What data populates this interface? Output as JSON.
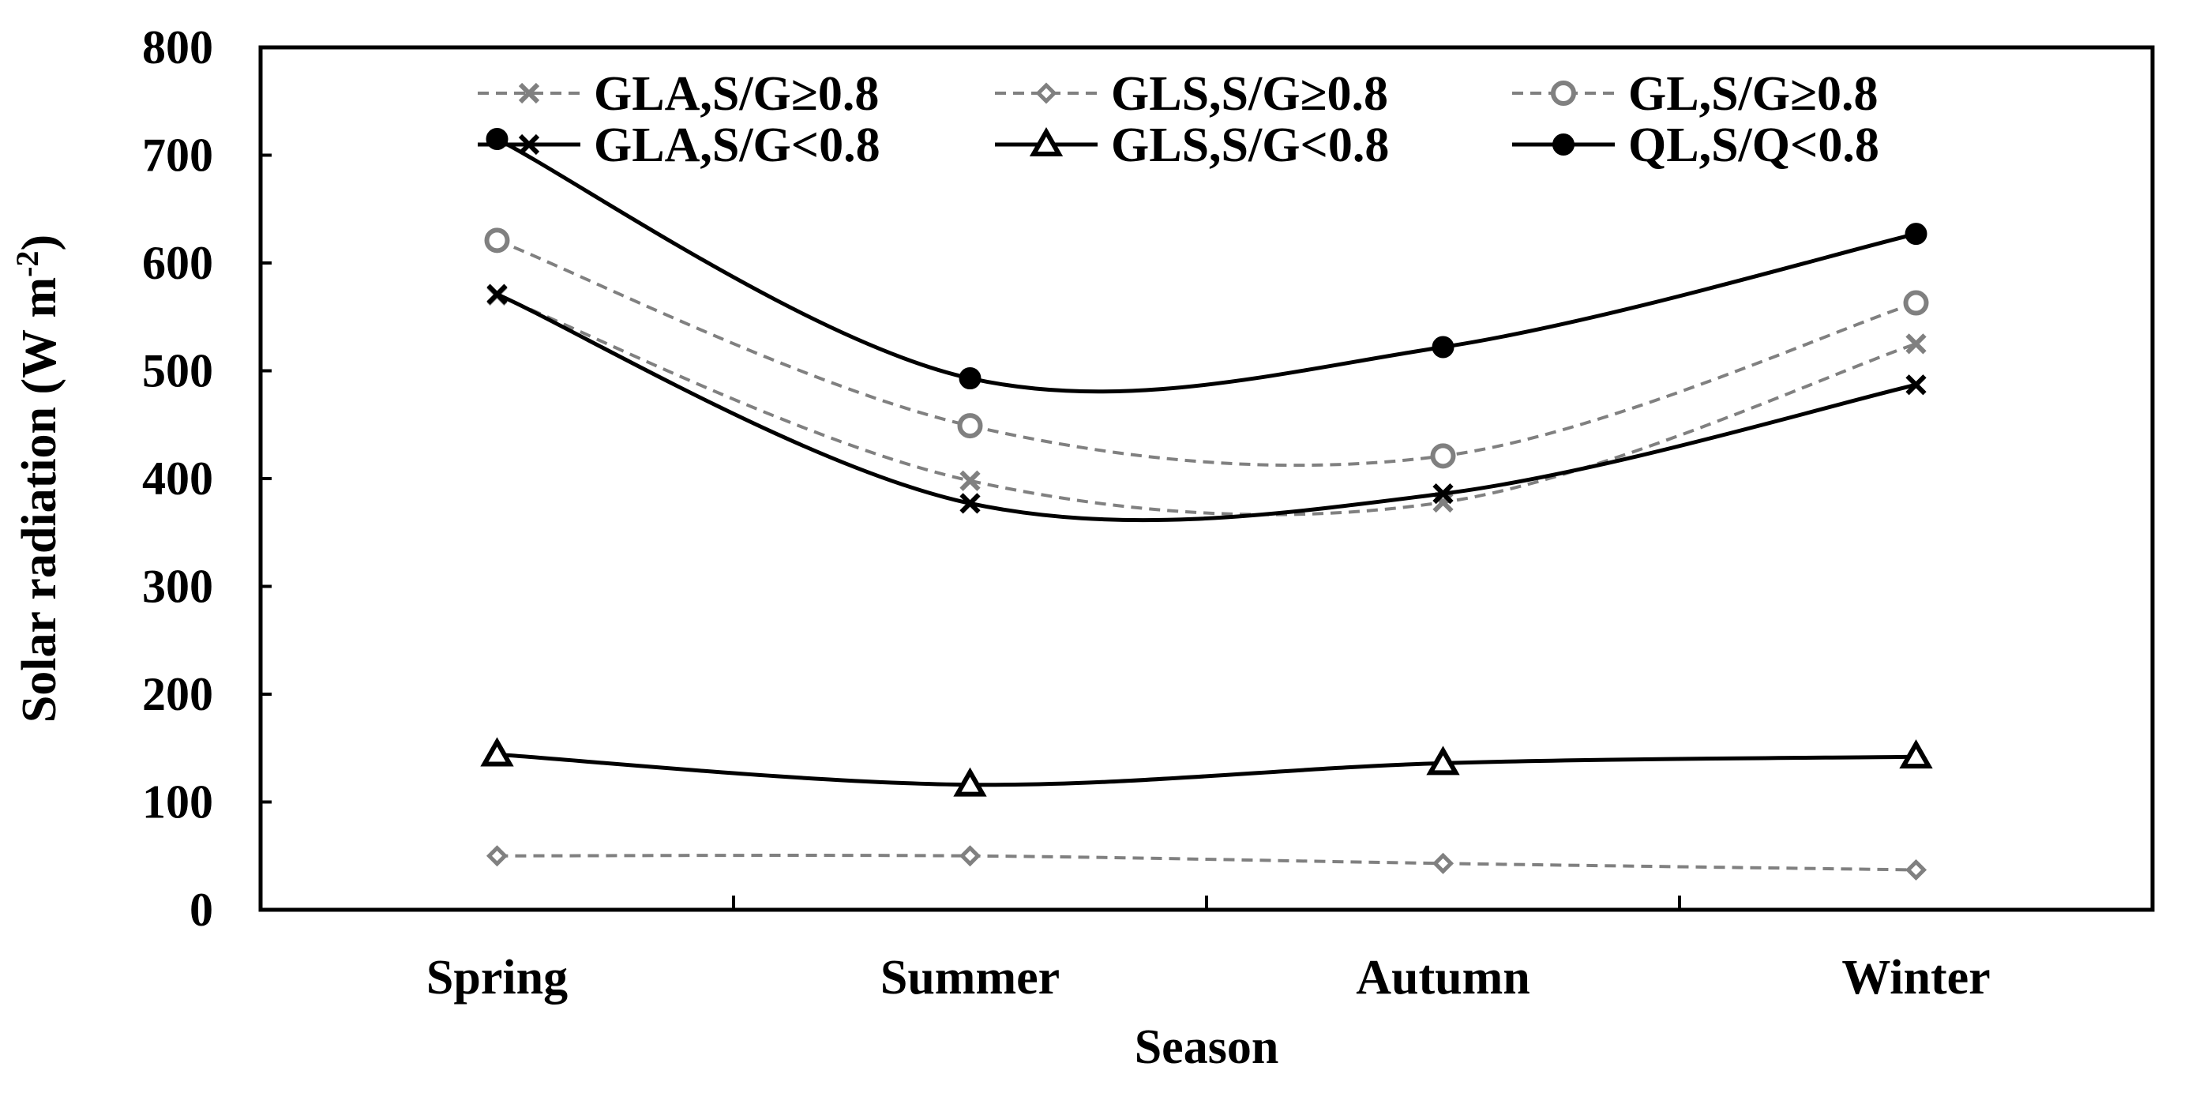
{
  "chart_data": {
    "type": "line",
    "title": "",
    "xlabel": "Season",
    "ylabel": "Solar radiation (W m",
    "ylabel_sup": "-2",
    "ylabel_close": ")",
    "categories": [
      "Spring",
      "Summer",
      "Autumn",
      "Winter"
    ],
    "ylim": [
      0,
      800
    ],
    "yticks": [
      "0",
      "100",
      "200",
      "300",
      "400",
      "500",
      "600",
      "700",
      "800"
    ],
    "grid": false,
    "legend_position": "top",
    "series": [
      {
        "name": "GLA,S/G≥0.8",
        "values": [
          570,
          398,
          378,
          525
        ],
        "color": "#808080",
        "dash": true,
        "marker": "x"
      },
      {
        "name": "GLS,S/G≥0.8",
        "values": [
          50,
          50,
          43,
          37
        ],
        "color": "#808080",
        "dash": true,
        "marker": "diamond-open"
      },
      {
        "name": "GL,S/G≥0.8",
        "values": [
          621,
          449,
          421,
          563
        ],
        "color": "#808080",
        "dash": true,
        "marker": "circle-open"
      },
      {
        "name": "GLA,S/G<0.8",
        "values": [
          571,
          377,
          386,
          487
        ],
        "color": "#000000",
        "dash": false,
        "marker": "x"
      },
      {
        "name": "GLS,S/G<0.8",
        "values": [
          144,
          116,
          136,
          142
        ],
        "color": "#000000",
        "dash": false,
        "marker": "triangle-open"
      },
      {
        "name": "QL,S/Q<0.8",
        "values": [
          715,
          493,
          522,
          627
        ],
        "color": "#000000",
        "dash": false,
        "marker": "circle-filled"
      }
    ]
  }
}
